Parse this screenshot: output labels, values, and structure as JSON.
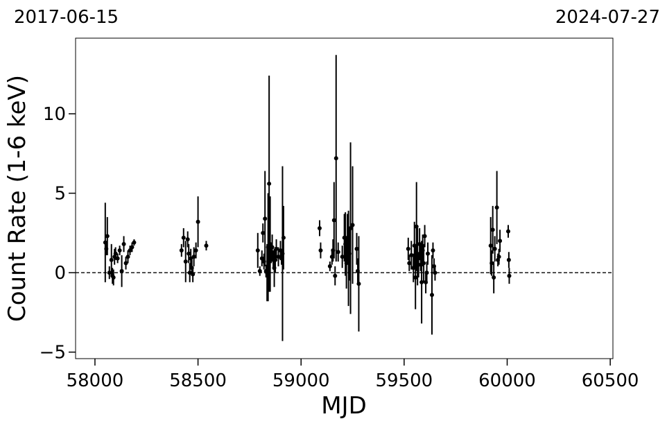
{
  "chart_data": {
    "type": "errorbar-scatter",
    "annotations": [
      "2017-06-15",
      "2024-07-27"
    ],
    "x_label": "MJD",
    "y_label": "Count Rate (1-6 keV)",
    "xlim": [
      57906,
      60513
    ],
    "ylim": [
      -5.41,
      14.76
    ],
    "xticks": [
      58000,
      58500,
      59000,
      59500,
      60000,
      60500
    ],
    "yticks": [
      {
        "value": -5,
        "label": "−5"
      },
      0,
      5,
      10
    ],
    "hline": 0,
    "grid": false,
    "series": [
      {
        "color": "#000000",
        "x": [
          58050,
          58055,
          58060,
          58070,
          58080,
          58085,
          58090,
          58095,
          58100,
          58110,
          58120,
          58130,
          58140,
          58150,
          58160,
          58170,
          58180,
          58190,
          58420,
          58430,
          58440,
          58450,
          58455,
          58460,
          58465,
          58470,
          58475,
          58480,
          58490,
          58500,
          58540,
          58790,
          58800,
          58810,
          58815,
          58820,
          58825,
          58830,
          58835,
          58840,
          58845,
          58850,
          58855,
          58860,
          58865,
          58870,
          58875,
          58880,
          58890,
          58900,
          58905,
          58910,
          58915,
          59090,
          59095,
          59140,
          59150,
          59155,
          59160,
          59165,
          59170,
          59180,
          59200,
          59210,
          59215,
          59220,
          59225,
          59230,
          59235,
          59240,
          59250,
          59270,
          59275,
          59280,
          59520,
          59525,
          59535,
          59545,
          59550,
          59555,
          59560,
          59565,
          59570,
          59575,
          59580,
          59585,
          59590,
          59595,
          59600,
          59605,
          59610,
          59615,
          59635,
          59640,
          59645,
          59650,
          59920,
          59925,
          59930,
          59935,
          59940,
          59950,
          59955,
          59960,
          59965,
          60005,
          60008,
          60010
        ],
        "y": [
          1.9,
          1.5,
          2.3,
          0.0,
          0.8,
          -0.2,
          -0.3,
          1.0,
          1.2,
          0.9,
          1.4,
          0.1,
          1.8,
          0.6,
          1.0,
          1.4,
          1.6,
          1.9,
          1.4,
          2.2,
          0.7,
          2.1,
          1.2,
          0.0,
          0.9,
          0.3,
          -0.1,
          1.0,
          1.4,
          3.2,
          1.7,
          1.4,
          0.1,
          0.9,
          2.5,
          0.7,
          3.4,
          0.1,
          0.0,
          1.6,
          5.6,
          1.8,
          1.2,
          1.6,
          0.8,
          0.3,
          0.8,
          1.5,
          1.0,
          1.4,
          0.9,
          1.2,
          2.2,
          2.8,
          1.4,
          0.4,
          1.0,
          1.4,
          3.3,
          -0.2,
          7.2,
          1.3,
          1.0,
          2.2,
          1.8,
          0.6,
          2.2,
          0.9,
          1.2,
          2.8,
          3.0,
          1.5,
          0.1,
          -0.7,
          1.5,
          0.6,
          1.1,
          0.3,
          1.7,
          -0.3,
          2.9,
          1.0,
          0.5,
          1.8,
          0.9,
          -0.6,
          1.4,
          0.6,
          2.3,
          -0.6,
          0.0,
          1.2,
          -1.4,
          1.4,
          0.4,
          0.0,
          1.7,
          0.6,
          2.7,
          -0.3,
          1.5,
          4.1,
          0.8,
          1.0,
          2.0,
          2.6,
          0.8,
          -0.2
        ],
        "err": [
          2.5,
          0.4,
          1.2,
          0.4,
          1.0,
          0.5,
          0.5,
          0.5,
          0.4,
          0.3,
          0.3,
          1.0,
          0.5,
          0.4,
          0.4,
          0.3,
          0.3,
          0.2,
          0.4,
          0.6,
          1.3,
          0.5,
          0.6,
          0.6,
          0.6,
          0.5,
          0.5,
          0.6,
          0.5,
          1.6,
          0.3,
          1.1,
          0.3,
          0.5,
          0.6,
          0.5,
          3.0,
          0.4,
          1.8,
          3.4,
          6.8,
          3.0,
          0.6,
          0.8,
          0.6,
          1.2,
          0.8,
          0.6,
          0.6,
          0.6,
          0.4,
          5.5,
          2.0,
          0.5,
          0.5,
          0.3,
          0.5,
          0.7,
          2.4,
          0.6,
          6.5,
          0.6,
          0.7,
          1.5,
          2.0,
          1.6,
          1.5,
          3.0,
          1.7,
          5.4,
          3.7,
          1.0,
          0.8,
          3.0,
          0.7,
          0.5,
          0.9,
          0.9,
          1.5,
          2.0,
          2.8,
          1.8,
          0.8,
          1.0,
          0.8,
          2.6,
          1.0,
          1.2,
          0.7,
          0.7,
          0.7,
          0.7,
          2.5,
          0.5,
          0.5,
          0.5,
          1.8,
          0.8,
          1.5,
          1.0,
          0.8,
          2.3,
          0.4,
          0.5,
          0.7,
          0.4,
          0.5,
          0.5
        ]
      }
    ]
  }
}
